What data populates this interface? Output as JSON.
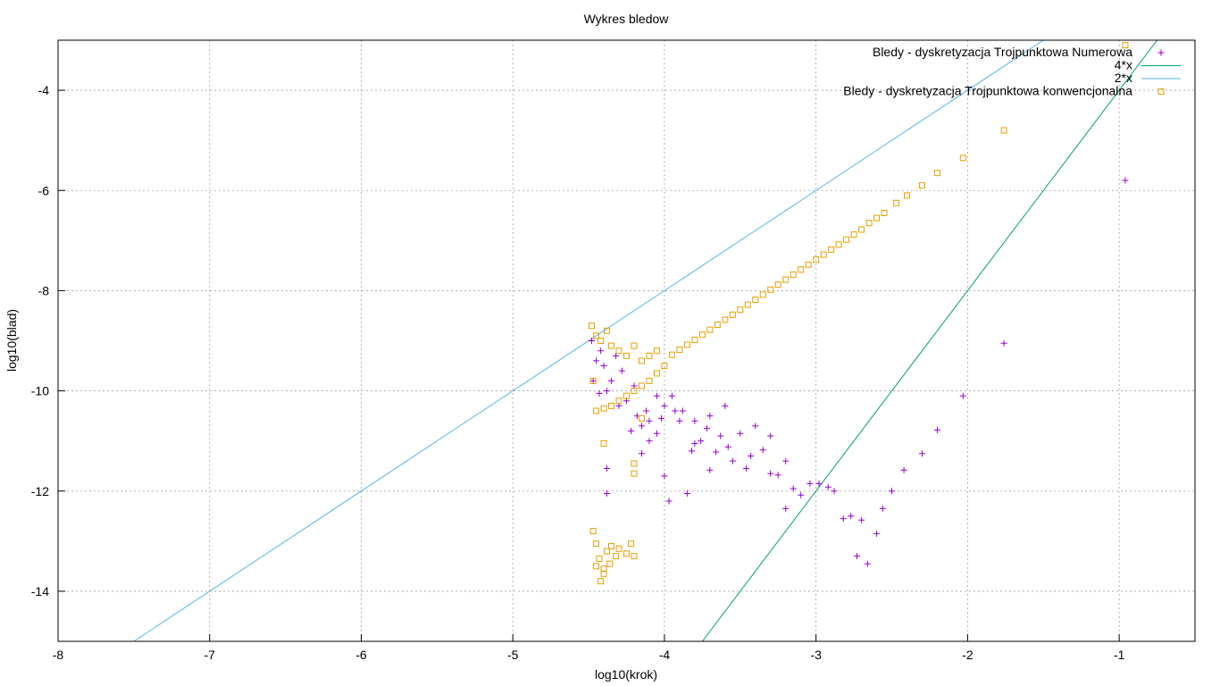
{
  "chart_data": {
    "type": "scatter",
    "title": "Wykres bledow",
    "xlabel": "log10(krok)",
    "ylabel": "log10(blad)",
    "xlim": [
      -8,
      -0.5
    ],
    "ylim": [
      -15,
      -3
    ],
    "xticks": [
      -8,
      -7,
      -6,
      -5,
      -4,
      -3,
      -2,
      -1
    ],
    "yticks": [
      -4,
      -6,
      -8,
      -10,
      -12,
      -14
    ],
    "grid": true,
    "legend_position": "top-right",
    "colors": {
      "numerowa": "#9400d3",
      "konwencjonalna": "#e69f00",
      "line4x": "#009e73",
      "line2x": "#56b4e9"
    },
    "series": [
      {
        "name": "Bledy - dyskretyzacja Trojpunktowa Numerowa",
        "marker": "plus",
        "color": "#9400d3",
        "points": [
          [
            -0.96,
            -5.8
          ],
          [
            -1.76,
            -9.05
          ],
          [
            -2.03,
            -10.1
          ],
          [
            -2.2,
            -10.78
          ],
          [
            -2.3,
            -11.25
          ],
          [
            -2.42,
            -11.58
          ],
          [
            -2.5,
            -12.0
          ],
          [
            -2.56,
            -12.35
          ],
          [
            -2.6,
            -12.85
          ],
          [
            -2.66,
            -13.45
          ],
          [
            -2.73,
            -13.3
          ],
          [
            -2.7,
            -12.58
          ],
          [
            -2.77,
            -12.5
          ],
          [
            -2.82,
            -12.55
          ],
          [
            -2.88,
            -12.0
          ],
          [
            -2.92,
            -11.92
          ],
          [
            -2.98,
            -11.85
          ],
          [
            -3.04,
            -11.85
          ],
          [
            -3.1,
            -12.08
          ],
          [
            -3.15,
            -11.95
          ],
          [
            -3.2,
            -12.35
          ],
          [
            -3.25,
            -11.68
          ],
          [
            -3.3,
            -11.65
          ],
          [
            -3.35,
            -11.18
          ],
          [
            -3.43,
            -11.3
          ],
          [
            -3.46,
            -11.55
          ],
          [
            -3.5,
            -10.85
          ],
          [
            -3.55,
            -11.4
          ],
          [
            -3.58,
            -11.12
          ],
          [
            -3.63,
            -10.9
          ],
          [
            -3.66,
            -11.22
          ],
          [
            -3.7,
            -11.58
          ],
          [
            -3.72,
            -10.75
          ],
          [
            -3.76,
            -11.0
          ],
          [
            -3.8,
            -11.05
          ],
          [
            -3.82,
            -11.2
          ],
          [
            -3.85,
            -12.05
          ],
          [
            -3.88,
            -10.4
          ],
          [
            -3.9,
            -10.6
          ],
          [
            -3.93,
            -10.4
          ],
          [
            -3.95,
            -10.1
          ],
          [
            -3.97,
            -12.2
          ],
          [
            -4.0,
            -10.3
          ],
          [
            -4.02,
            -10.55
          ],
          [
            -4.05,
            -10.1
          ],
          [
            -4.05,
            -10.85
          ],
          [
            -4.1,
            -10.6
          ],
          [
            -4.12,
            -10.4
          ],
          [
            -4.15,
            -10.7
          ],
          [
            -4.18,
            -10.5
          ],
          [
            -4.2,
            -9.9
          ],
          [
            -4.22,
            -10.8
          ],
          [
            -4.25,
            -10.2
          ],
          [
            -4.28,
            -9.6
          ],
          [
            -4.3,
            -10.3
          ],
          [
            -4.32,
            -9.3
          ],
          [
            -4.35,
            -9.8
          ],
          [
            -4.38,
            -10.0
          ],
          [
            -4.38,
            -11.55
          ],
          [
            -4.38,
            -12.05
          ],
          [
            -4.4,
            -9.5
          ],
          [
            -4.42,
            -9.2
          ],
          [
            -4.43,
            -10.05
          ],
          [
            -4.45,
            -9.4
          ],
          [
            -4.47,
            -9.8
          ],
          [
            -4.48,
            -9.0
          ],
          [
            -4.1,
            -11.0
          ],
          [
            -4.15,
            -11.25
          ],
          [
            -3.6,
            -10.3
          ],
          [
            -3.7,
            -10.5
          ],
          [
            -3.4,
            -10.7
          ],
          [
            -3.3,
            -10.9
          ],
          [
            -3.2,
            -11.4
          ],
          [
            -3.8,
            -10.6
          ],
          [
            -4.0,
            -11.7
          ]
        ]
      },
      {
        "name": "4*x",
        "type": "line",
        "color": "#009e73",
        "slope": 4
      },
      {
        "name": "2*x",
        "type": "line",
        "color": "#56b4e9",
        "slope": 2
      },
      {
        "name": "Bledy - dyskretyzacja Trojpunktowa konwencjonalna",
        "marker": "square",
        "color": "#e69f00",
        "points": [
          [
            -0.96,
            -3.1
          ],
          [
            -1.76,
            -4.8
          ],
          [
            -2.03,
            -5.35
          ],
          [
            -2.2,
            -5.65
          ],
          [
            -2.3,
            -5.9
          ],
          [
            -2.4,
            -6.1
          ],
          [
            -2.47,
            -6.25
          ],
          [
            -2.55,
            -6.45
          ],
          [
            -2.6,
            -6.55
          ],
          [
            -2.65,
            -6.65
          ],
          [
            -2.7,
            -6.78
          ],
          [
            -2.75,
            -6.88
          ],
          [
            -2.8,
            -6.98
          ],
          [
            -2.85,
            -7.08
          ],
          [
            -2.9,
            -7.18
          ],
          [
            -2.95,
            -7.28
          ],
          [
            -3.0,
            -7.38
          ],
          [
            -3.05,
            -7.48
          ],
          [
            -3.1,
            -7.58
          ],
          [
            -3.15,
            -7.68
          ],
          [
            -3.2,
            -7.78
          ],
          [
            -3.25,
            -7.88
          ],
          [
            -3.3,
            -7.98
          ],
          [
            -3.35,
            -8.08
          ],
          [
            -3.4,
            -8.18
          ],
          [
            -3.45,
            -8.28
          ],
          [
            -3.5,
            -8.38
          ],
          [
            -3.55,
            -8.48
          ],
          [
            -3.6,
            -8.58
          ],
          [
            -3.65,
            -8.68
          ],
          [
            -3.7,
            -8.78
          ],
          [
            -3.75,
            -8.88
          ],
          [
            -3.8,
            -8.98
          ],
          [
            -3.85,
            -9.08
          ],
          [
            -3.9,
            -9.18
          ],
          [
            -3.95,
            -9.28
          ],
          [
            -4.0,
            -9.5
          ],
          [
            -4.05,
            -9.65
          ],
          [
            -4.1,
            -9.8
          ],
          [
            -4.15,
            -9.9
          ],
          [
            -4.2,
            -10.0
          ],
          [
            -4.25,
            -10.1
          ],
          [
            -4.3,
            -10.2
          ],
          [
            -4.35,
            -10.3
          ],
          [
            -4.4,
            -10.35
          ],
          [
            -4.45,
            -10.4
          ],
          [
            -4.48,
            -8.7
          ],
          [
            -4.45,
            -8.9
          ],
          [
            -4.42,
            -9.0
          ],
          [
            -4.38,
            -8.8
          ],
          [
            -4.35,
            -9.1
          ],
          [
            -4.3,
            -9.2
          ],
          [
            -4.25,
            -9.3
          ],
          [
            -4.2,
            -9.1
          ],
          [
            -4.15,
            -9.4
          ],
          [
            -4.1,
            -9.3
          ],
          [
            -4.05,
            -9.2
          ],
          [
            -4.47,
            -9.8
          ],
          [
            -4.4,
            -11.05
          ],
          [
            -4.2,
            -11.45
          ],
          [
            -4.2,
            -11.65
          ],
          [
            -4.15,
            -10.55
          ],
          [
            -4.47,
            -12.8
          ],
          [
            -4.45,
            -13.05
          ],
          [
            -4.43,
            -13.35
          ],
          [
            -4.4,
            -13.55
          ],
          [
            -4.38,
            -13.2
          ],
          [
            -4.35,
            -13.1
          ],
          [
            -4.32,
            -13.3
          ],
          [
            -4.3,
            -13.15
          ],
          [
            -4.25,
            -13.25
          ],
          [
            -4.2,
            -13.3
          ],
          [
            -4.22,
            -13.05
          ],
          [
            -4.42,
            -13.8
          ],
          [
            -4.45,
            -13.5
          ],
          [
            -4.4,
            -13.65
          ],
          [
            -4.36,
            -13.45
          ]
        ]
      }
    ]
  }
}
